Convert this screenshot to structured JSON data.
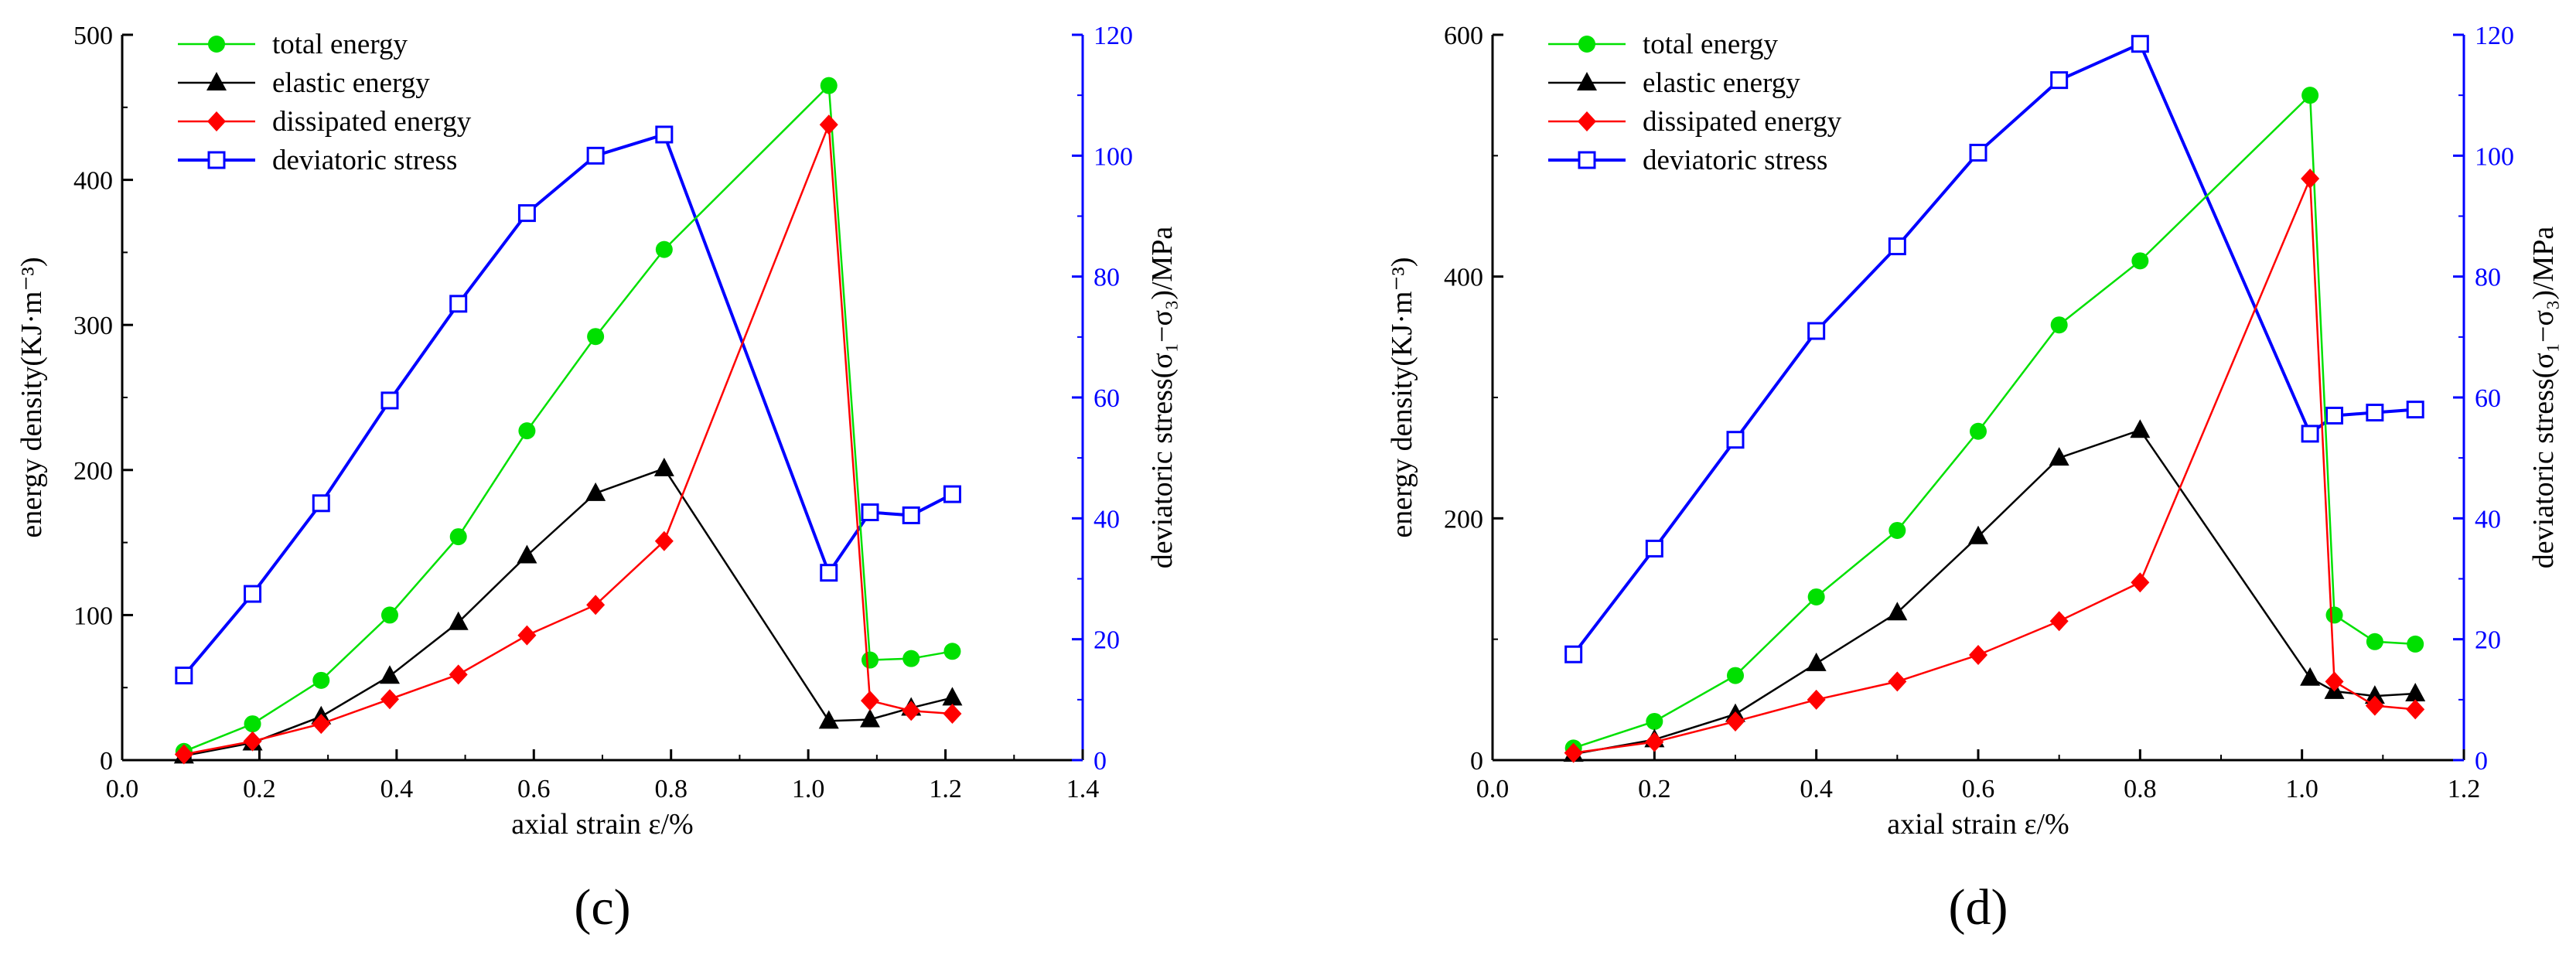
{
  "chart_data": [
    {
      "type": "line",
      "panel_label": "(c)",
      "xlabel": "axial strain  ε/%",
      "ylabel": "energy density(KJ·m⁻³)",
      "y2label": "deviatoric stress(σ₁−σ₃)/MPa",
      "xlim": [
        0,
        1.4
      ],
      "ylim": [
        0,
        500
      ],
      "y2lim": [
        0,
        120
      ],
      "xticks": [
        0.0,
        0.2,
        0.4,
        0.6,
        0.8,
        1.0,
        1.2,
        1.4
      ],
      "yticks": [
        0,
        100,
        200,
        300,
        400,
        500
      ],
      "y2ticks": [
        0,
        20,
        40,
        60,
        80,
        100,
        120
      ],
      "xtick_labels": [
        "0.0",
        "0.2",
        "0.4",
        "0.6",
        "0.8",
        "1.0",
        "1.2",
        "1.4"
      ],
      "ytick_labels": [
        "0",
        "100",
        "200",
        "300",
        "400",
        "500"
      ],
      "y2tick_labels": [
        "0",
        "20",
        "40",
        "60",
        "80",
        "100",
        "120"
      ],
      "legend_position": "top-left",
      "grid": false,
      "series": [
        {
          "name": "total energy",
          "axis": "left",
          "color": "#00e000",
          "marker": "circle",
          "x": [
            0.09,
            0.19,
            0.29,
            0.39,
            0.49,
            0.59,
            0.69,
            0.79,
            1.03,
            1.09,
            1.15,
            1.21
          ],
          "y": [
            6,
            25,
            55,
            100,
            154,
            227,
            292,
            352,
            465,
            69,
            70,
            75
          ]
        },
        {
          "name": "elastic energy",
          "axis": "left",
          "color": "#000000",
          "marker": "triangle",
          "x": [
            0.09,
            0.19,
            0.29,
            0.39,
            0.49,
            0.59,
            0.69,
            0.79,
            1.03,
            1.09,
            1.15,
            1.21
          ],
          "y": [
            3,
            12,
            30,
            58,
            95,
            141,
            184,
            201,
            27,
            28,
            36,
            43
          ]
        },
        {
          "name": "dissipated energy",
          "axis": "left",
          "color": "#ff0000",
          "marker": "diamond",
          "x": [
            0.09,
            0.19,
            0.29,
            0.39,
            0.49,
            0.59,
            0.69,
            0.79,
            1.03,
            1.09,
            1.15,
            1.21
          ],
          "y": [
            4,
            13,
            25,
            42,
            59,
            86,
            107,
            151,
            438,
            41,
            34,
            32
          ]
        },
        {
          "name": "deviatoric stress",
          "axis": "right",
          "color": "#0000ff",
          "marker": "open-square",
          "x": [
            0.09,
            0.19,
            0.29,
            0.39,
            0.49,
            0.59,
            0.69,
            0.79,
            1.03,
            1.09,
            1.15,
            1.21
          ],
          "y": [
            14,
            27.5,
            42.5,
            59.5,
            75.5,
            90.5,
            100,
            103.5,
            31,
            41,
            40.5,
            44
          ]
        }
      ]
    },
    {
      "type": "line",
      "panel_label": "(d)",
      "xlabel": "axial strain  ε/%",
      "ylabel": "energy density(KJ·m⁻³)",
      "y2label": "deviatoric stress(σ₁−σ₃)/MPa",
      "xlim": [
        0,
        1.2
      ],
      "ylim": [
        0,
        600
      ],
      "y2lim": [
        0,
        120
      ],
      "xticks": [
        0.0,
        0.2,
        0.4,
        0.6,
        0.8,
        1.0,
        1.2
      ],
      "yticks": [
        0,
        200,
        400,
        600
      ],
      "y2ticks": [
        0,
        20,
        40,
        60,
        80,
        100,
        120
      ],
      "xtick_labels": [
        "0.0",
        "0.2",
        "0.4",
        "0.6",
        "0.8",
        "1.0",
        "1.2"
      ],
      "ytick_labels": [
        "0",
        "200",
        "400",
        "600"
      ],
      "y2tick_labels": [
        "0",
        "20",
        "40",
        "60",
        "80",
        "100",
        "120"
      ],
      "legend_position": "top-left",
      "grid": false,
      "series": [
        {
          "name": "total energy",
          "axis": "left",
          "color": "#00e000",
          "marker": "circle",
          "x": [
            0.1,
            0.2,
            0.3,
            0.4,
            0.5,
            0.6,
            0.7,
            0.8,
            1.01,
            1.04,
            1.09,
            1.14
          ],
          "y": [
            10,
            32,
            70,
            135,
            190,
            272,
            360,
            413,
            550,
            120,
            98,
            96
          ]
        },
        {
          "name": "elastic energy",
          "axis": "left",
          "color": "#000000",
          "marker": "triangle",
          "x": [
            0.1,
            0.2,
            0.3,
            0.4,
            0.5,
            0.6,
            0.7,
            0.8,
            1.01,
            1.04,
            1.09,
            1.14
          ],
          "y": [
            5,
            17,
            38,
            80,
            122,
            185,
            250,
            273,
            68,
            57,
            53,
            55
          ]
        },
        {
          "name": "dissipated energy",
          "axis": "left",
          "color": "#ff0000",
          "marker": "diamond",
          "x": [
            0.1,
            0.2,
            0.3,
            0.4,
            0.5,
            0.6,
            0.7,
            0.8,
            1.01,
            1.04,
            1.09,
            1.14
          ],
          "y": [
            6,
            15,
            32,
            50,
            65,
            87,
            115,
            147,
            481,
            65,
            45,
            42
          ]
        },
        {
          "name": "deviatoric stress",
          "axis": "right",
          "color": "#0000ff",
          "marker": "open-square",
          "x": [
            0.1,
            0.2,
            0.3,
            0.4,
            0.5,
            0.6,
            0.7,
            0.8,
            1.01,
            1.04,
            1.09,
            1.14
          ],
          "y": [
            17.5,
            35,
            53,
            71,
            85,
            100.5,
            112.5,
            118.5,
            54,
            57,
            57.5,
            58
          ]
        }
      ]
    }
  ]
}
